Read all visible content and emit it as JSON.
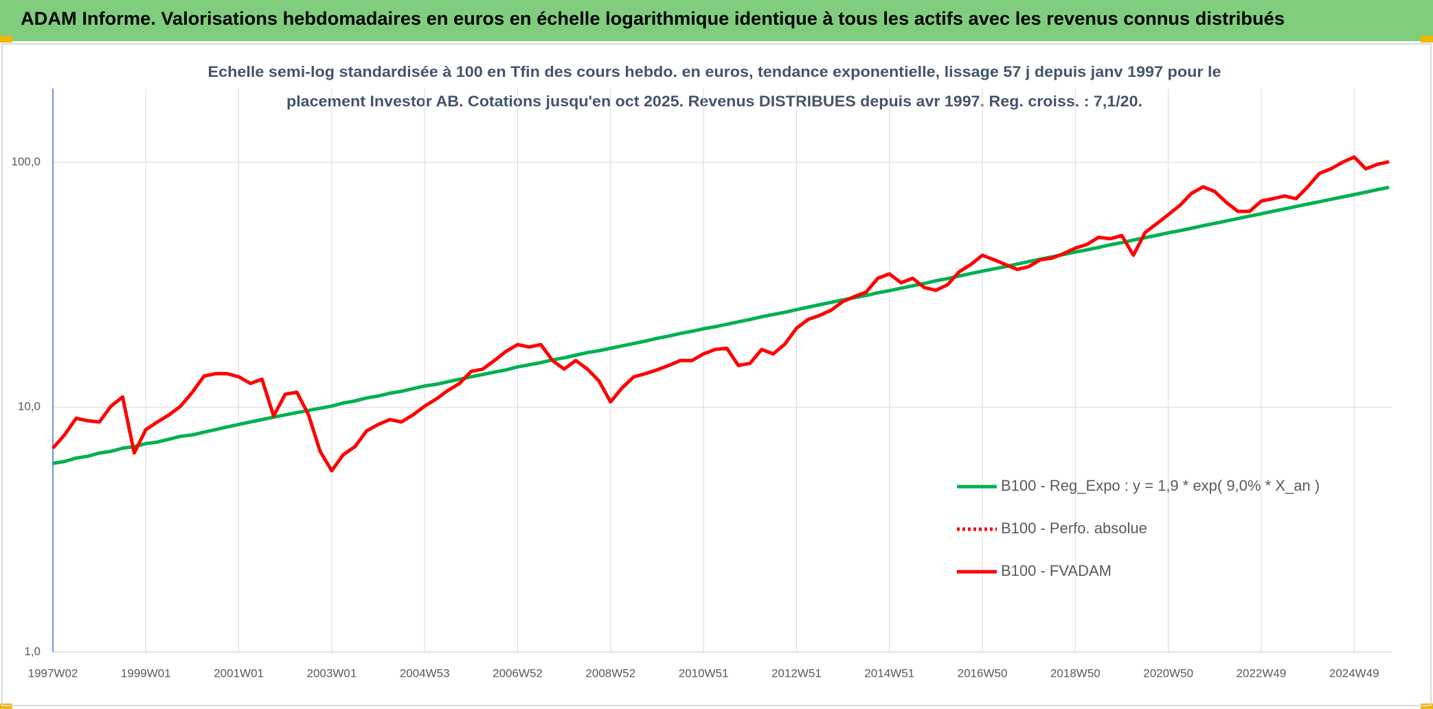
{
  "chart_data": {
    "type": "line",
    "title": "ADAM Informe. Valorisations hebdomadaires en euros en échelle logarithmique identique à tous les actifs avec les revenus connus distribués",
    "subtitle": [
      "Echelle semi-log standardisée à 100 en Tfin des cours hebdo. en euros, tendance exponentielle, lissage 57 j depuis janv 1997 pour le",
      "placement Investor AB. Cotations jusqu'en oct 2025. Revenus DISTRIBUES depuis avr 1997. Reg. croiss. : 7,1/20."
    ],
    "log_scale": true,
    "grid": true,
    "legend": "right",
    "ylim": [
      1,
      200
    ],
    "yticks": [
      {
        "value": 1,
        "label": "1,0"
      },
      {
        "value": 10,
        "label": "10,0"
      },
      {
        "value": 100,
        "label": "100,0"
      }
    ],
    "categories": [
      "1997W02",
      null,
      null,
      null,
      null,
      null,
      null,
      null,
      "1999W01",
      null,
      null,
      null,
      null,
      null,
      null,
      null,
      "2001W01",
      null,
      null,
      null,
      null,
      null,
      null,
      null,
      "2003W01",
      null,
      null,
      null,
      null,
      null,
      null,
      null,
      "2004W53",
      null,
      null,
      null,
      null,
      null,
      null,
      null,
      "2006W52",
      null,
      null,
      null,
      null,
      null,
      null,
      null,
      "2008W52",
      null,
      null,
      null,
      null,
      null,
      null,
      null,
      "2010W51",
      null,
      null,
      null,
      null,
      null,
      null,
      null,
      "2012W51",
      null,
      null,
      null,
      null,
      null,
      null,
      null,
      "2014W51",
      null,
      null,
      null,
      null,
      null,
      null,
      null,
      "2016W50",
      null,
      null,
      null,
      null,
      null,
      null,
      null,
      "2018W50",
      null,
      null,
      null,
      null,
      null,
      null,
      null,
      "2020W50",
      null,
      null,
      null,
      null,
      null,
      null,
      null,
      "2022W49",
      null,
      null,
      null,
      null,
      null,
      null,
      null,
      "2024W49",
      null,
      null,
      null
    ],
    "series": [
      {
        "name": "B100 - Reg_Expo : y = 1,9 * exp( 9,0% *  X_an )",
        "color": "#00b050",
        "dash": "solid",
        "values": [
          5.9,
          6.0,
          6.2,
          6.3,
          6.5,
          6.6,
          6.8,
          6.9,
          7.1,
          7.2,
          7.4,
          7.6,
          7.7,
          7.9,
          8.1,
          8.3,
          8.5,
          8.7,
          8.9,
          9.1,
          9.3,
          9.5,
          9.7,
          9.9,
          10.1,
          10.4,
          10.6,
          10.9,
          11.1,
          11.4,
          11.6,
          11.9,
          12.2,
          12.4,
          12.7,
          13.0,
          13.3,
          13.6,
          13.9,
          14.2,
          14.6,
          14.9,
          15.2,
          15.6,
          15.9,
          16.3,
          16.7,
          17.0,
          17.4,
          17.8,
          18.2,
          18.6,
          19.1,
          19.5,
          20.0,
          20.4,
          20.9,
          21.3,
          21.8,
          22.3,
          22.8,
          23.4,
          23.9,
          24.4,
          25.0,
          25.6,
          26.2,
          26.8,
          27.4,
          28.0,
          28.6,
          29.3,
          29.9,
          30.6,
          31.3,
          32.0,
          32.8,
          33.5,
          34.3,
          35.1,
          35.9,
          36.7,
          37.5,
          38.4,
          39.3,
          40.2,
          41.1,
          42.0,
          43.0,
          43.9,
          44.9,
          46.0,
          47.0,
          48.1,
          49.2,
          50.3,
          51.5,
          52.6,
          53.8,
          55.1,
          56.3,
          57.6,
          58.9,
          60.3,
          61.6,
          63.1,
          64.5,
          66.0,
          67.5,
          69.0,
          70.6,
          72.2,
          73.8,
          75.5,
          77.3,
          79.0
        ]
      },
      {
        "name": "B100 - Perfo. absolue",
        "color": "#ff0000",
        "dash": "dotted"
      },
      {
        "name": "B100 - FVADAM",
        "color": "#ff0000",
        "dash": "solid",
        "values": [
          6.8,
          7.7,
          9.0,
          8.8,
          8.7,
          10.1,
          11.0,
          6.5,
          8.1,
          8.7,
          9.3,
          10.1,
          11.5,
          13.4,
          13.7,
          13.7,
          13.3,
          12.5,
          13.0,
          9.2,
          11.3,
          11.5,
          9.3,
          6.6,
          5.5,
          6.4,
          6.9,
          8.0,
          8.5,
          8.9,
          8.7,
          9.3,
          10.1,
          10.8,
          11.7,
          12.5,
          14.0,
          14.3,
          15.5,
          16.9,
          18.0,
          17.6,
          18.0,
          15.5,
          14.3,
          15.5,
          14.3,
          12.8,
          10.5,
          12.0,
          13.3,
          13.7,
          14.2,
          14.8,
          15.5,
          15.5,
          16.5,
          17.2,
          17.4,
          14.8,
          15.1,
          17.2,
          16.5,
          18.1,
          21.0,
          22.8,
          23.7,
          24.9,
          27.0,
          28.3,
          29.5,
          33.6,
          35.0,
          32.2,
          33.6,
          30.8,
          30.0,
          31.6,
          35.7,
          38.2,
          41.7,
          40.0,
          38.2,
          36.5,
          37.5,
          40.0,
          40.6,
          42.4,
          44.6,
          46.2,
          49.4,
          48.7,
          50.2,
          41.7,
          51.6,
          56.1,
          61.1,
          66.7,
          74.7,
          79.4,
          75.9,
          68.5,
          63.0,
          63.0,
          69.4,
          71.0,
          72.8,
          71.0,
          79.4,
          90.0,
          94.0,
          100.0,
          105.0,
          94.0,
          98.0,
          100.5
        ]
      }
    ]
  }
}
